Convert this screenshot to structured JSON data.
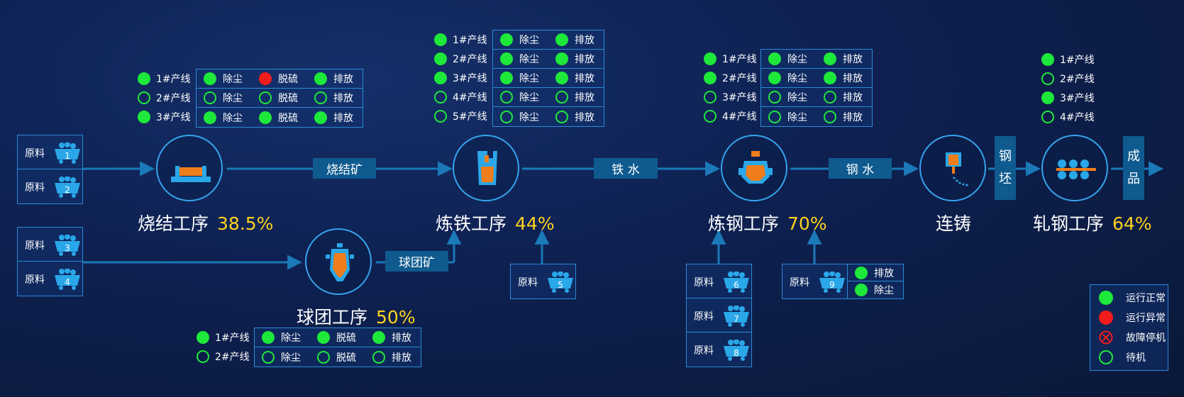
{
  "processes": {
    "sinter": {
      "name": "烧结工序",
      "percent": "38.5%"
    },
    "pellet": {
      "name": "球团工序",
      "percent": "50%"
    },
    "iron": {
      "name": "炼铁工序",
      "percent": "44%"
    },
    "steel": {
      "name": "炼钢工序",
      "percent": "70%"
    },
    "casting": {
      "name": "连铸"
    },
    "rolling": {
      "name": "轧钢工序",
      "percent": "64%"
    }
  },
  "flow_labels": {
    "sinter_ore": "烧结矿",
    "molten_iron": "铁 水",
    "molten_steel": "钢 水",
    "pellet_ore": "球团矿",
    "billet": [
      "钢",
      "坯"
    ],
    "product": [
      "成",
      "品"
    ]
  },
  "raw_label": "原料",
  "raw_materials": [
    {
      "num": "1"
    },
    {
      "num": "2"
    },
    {
      "num": "3"
    },
    {
      "num": "4"
    },
    {
      "num": "5"
    },
    {
      "num": "6"
    },
    {
      "num": "7"
    },
    {
      "num": "8"
    },
    {
      "num": "9"
    }
  ],
  "status_colors": {
    "on": "#1ee83a",
    "err": "#f21c1c",
    "idle": "#1ee83a",
    "accent": "#ffd21f",
    "border": "#36a4ee"
  },
  "sinter_lines": [
    {
      "line": "1#产线",
      "status": "on",
      "cells": [
        {
          "label": "除尘",
          "status": "on"
        },
        {
          "label": "脱硫",
          "status": "err"
        },
        {
          "label": "排放",
          "status": "on"
        }
      ]
    },
    {
      "line": "2#产线",
      "status": "idle",
      "cells": [
        {
          "label": "除尘",
          "status": "idle"
        },
        {
          "label": "脱硫",
          "status": "idle"
        },
        {
          "label": "排放",
          "status": "idle"
        }
      ]
    },
    {
      "line": "3#产线",
      "status": "on",
      "cells": [
        {
          "label": "除尘",
          "status": "on"
        },
        {
          "label": "脱硫",
          "status": "on"
        },
        {
          "label": "排放",
          "status": "on"
        }
      ]
    }
  ],
  "iron_lines": [
    {
      "line": "1#产线",
      "status": "on",
      "cells": [
        {
          "label": "除尘",
          "status": "on"
        },
        {
          "label": "排放",
          "status": "on"
        }
      ]
    },
    {
      "line": "2#产线",
      "status": "on",
      "cells": [
        {
          "label": "除尘",
          "status": "on"
        },
        {
          "label": "排放",
          "status": "on"
        }
      ]
    },
    {
      "line": "3#产线",
      "status": "on",
      "cells": [
        {
          "label": "除尘",
          "status": "on"
        },
        {
          "label": "排放",
          "status": "on"
        }
      ]
    },
    {
      "line": "4#产线",
      "status": "idle",
      "cells": [
        {
          "label": "除尘",
          "status": "idle"
        },
        {
          "label": "排放",
          "status": "idle"
        }
      ]
    },
    {
      "line": "5#产线",
      "status": "idle",
      "cells": [
        {
          "label": "除尘",
          "status": "idle"
        },
        {
          "label": "排放",
          "status": "idle"
        }
      ]
    }
  ],
  "steel_lines": [
    {
      "line": "1#产线",
      "status": "on",
      "cells": [
        {
          "label": "除尘",
          "status": "on"
        },
        {
          "label": "排放",
          "status": "on"
        }
      ]
    },
    {
      "line": "2#产线",
      "status": "on",
      "cells": [
        {
          "label": "除尘",
          "status": "on"
        },
        {
          "label": "排放",
          "status": "on"
        }
      ]
    },
    {
      "line": "3#产线",
      "status": "idle",
      "cells": [
        {
          "label": "除尘",
          "status": "idle"
        },
        {
          "label": "排放",
          "status": "idle"
        }
      ]
    },
    {
      "line": "4#产线",
      "status": "idle",
      "cells": [
        {
          "label": "除尘",
          "status": "idle"
        },
        {
          "label": "排放",
          "status": "idle"
        }
      ]
    }
  ],
  "rolling_lines": [
    {
      "line": "1#产线",
      "status": "on"
    },
    {
      "line": "2#产线",
      "status": "idle"
    },
    {
      "line": "3#产线",
      "status": "on"
    },
    {
      "line": "4#产线",
      "status": "idle"
    }
  ],
  "pellet_lines": [
    {
      "line": "1#产线",
      "status": "on",
      "cells": [
        {
          "label": "除尘",
          "status": "on"
        },
        {
          "label": "脱硫",
          "status": "on"
        },
        {
          "label": "排放",
          "status": "on"
        }
      ]
    },
    {
      "line": "2#产线",
      "status": "idle",
      "cells": [
        {
          "label": "除尘",
          "status": "idle"
        },
        {
          "label": "脱硫",
          "status": "idle"
        },
        {
          "label": "排放",
          "status": "idle"
        }
      ]
    }
  ],
  "raw9_status": [
    {
      "label": "排放",
      "status": "on"
    },
    {
      "label": "除尘",
      "status": "on"
    }
  ],
  "legend": [
    {
      "label": "运行正常",
      "status": "on"
    },
    {
      "label": "运行异常",
      "status": "err"
    },
    {
      "label": "故障停机",
      "status": "fault"
    },
    {
      "label": "待机",
      "status": "idle"
    }
  ]
}
